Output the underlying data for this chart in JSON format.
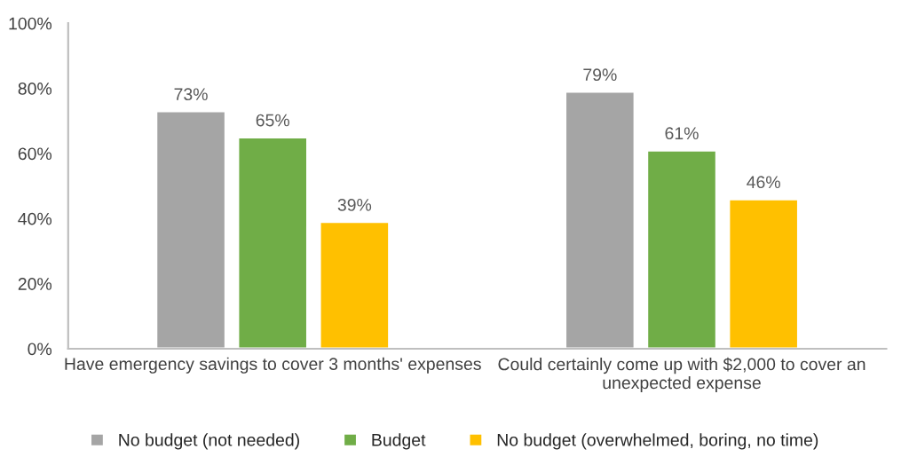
{
  "chart_data": {
    "type": "bar",
    "categories": [
      "Have emergency savings to cover 3 months' expenses",
      "Could certainly come up with $2,000 to cover an\nunexpected expense"
    ],
    "series": [
      {
        "name": "No budget (not needed)",
        "color": "#a5a5a5",
        "values": [
          73,
          79
        ],
        "value_labels": [
          "73%",
          "79%"
        ]
      },
      {
        "name": "Budget",
        "color": "#70ad47",
        "values": [
          65,
          61
        ],
        "value_labels": [
          "65%",
          "61%"
        ]
      },
      {
        "name": "No budget (overwhelmed, boring, no time)",
        "color": "#ffc000",
        "values": [
          39,
          46
        ],
        "value_labels": [
          "39%",
          "46%"
        ]
      }
    ],
    "ylim": [
      0,
      100
    ],
    "yticks": [
      {
        "value": 0,
        "label": "0%"
      },
      {
        "value": 20,
        "label": "20%"
      },
      {
        "value": 40,
        "label": "40%"
      },
      {
        "value": 60,
        "label": "60%"
      },
      {
        "value": 80,
        "label": "80%"
      },
      {
        "value": 100,
        "label": "100%"
      }
    ],
    "grid": false,
    "legend": "bottom"
  }
}
